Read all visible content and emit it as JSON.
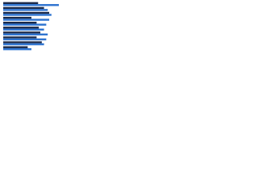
{
  "chart_data": {
    "type": "bar",
    "orientation": "horizontal",
    "categories": [
      null,
      null,
      null,
      null,
      null,
      null,
      null,
      null,
      null,
      null
    ],
    "series": [
      {
        "color": "#1b2a4a",
        "values": [
          47,
          55,
          62,
          38,
          45,
          48,
          50,
          45,
          52,
          33
        ]
      },
      {
        "color": "#2f74d0",
        "values": [
          75,
          60,
          65,
          62,
          58,
          55,
          60,
          58,
          55,
          38
        ]
      }
    ],
    "xlim": [
      0,
      100
    ]
  }
}
